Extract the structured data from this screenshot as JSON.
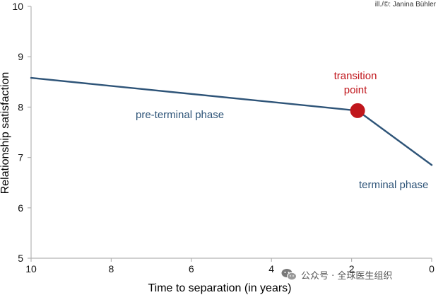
{
  "credit": "ill./©: Janina Bühler",
  "watermark": {
    "icon": "wechat-icon",
    "text": "公众号 · 全球医生组织"
  },
  "colors": {
    "line": "#2e5478",
    "point": "#c0161c",
    "point_label": "#c0161c",
    "phase_label": "#2e5478",
    "axis": "#b3b3b3"
  },
  "chart_data": {
    "type": "line",
    "title": "",
    "xlabel": "Time to separation (in years)",
    "ylabel": "Relationship satisfaction",
    "xlim": [
      10,
      0
    ],
    "ylim": [
      5,
      10
    ],
    "x_reversed": true,
    "xticks": [
      "10",
      "8",
      "6",
      "4",
      "2",
      "0"
    ],
    "yticks": [
      "5",
      "6",
      "7",
      "8",
      "9",
      "10"
    ],
    "grid": false,
    "series": [
      {
        "name": "",
        "x": [
          10,
          1.85,
          0
        ],
        "y": [
          8.58,
          7.93,
          6.85
        ]
      }
    ],
    "transition_point": {
      "x": 1.85,
      "y": 7.93
    },
    "annotations": {
      "transition": [
        "transition",
        "point"
      ],
      "pre_terminal": "pre-terminal phase",
      "terminal": "terminal phase"
    }
  }
}
